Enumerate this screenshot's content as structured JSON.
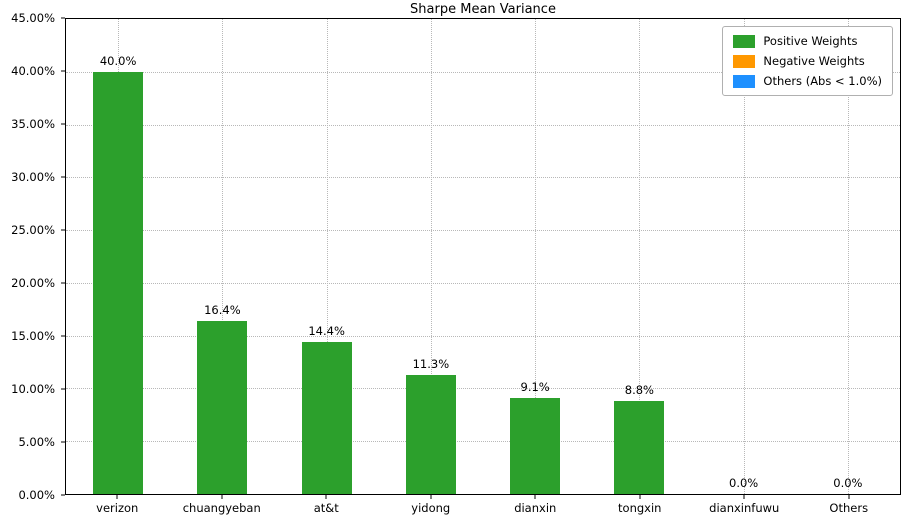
{
  "chart_data": {
    "type": "bar",
    "title": "Sharpe Mean Variance",
    "categories": [
      "verizon",
      "chuangyeban",
      "at&t",
      "yidong",
      "dianxin",
      "tongxin",
      "dianxinfuwu",
      "Others"
    ],
    "values": [
      40.0,
      16.4,
      14.4,
      11.3,
      9.1,
      8.8,
      0.0,
      0.0
    ],
    "value_labels": [
      "40.0%",
      "16.4%",
      "14.4%",
      "11.3%",
      "9.1%",
      "8.8%",
      "0.0%",
      "0.0%"
    ],
    "xlabel": "",
    "ylabel": "",
    "ylim": [
      0,
      45
    ],
    "y_ticks": [
      "0.00%",
      "5.00%",
      "10.00%",
      "15.00%",
      "20.00%",
      "25.00%",
      "30.00%",
      "35.00%",
      "40.00%",
      "45.00%"
    ],
    "grid": true,
    "bar_color": "#2ca02c",
    "legend": {
      "position": "top-right",
      "items": [
        {
          "label": "Positive Weights",
          "color": "#2ca02c"
        },
        {
          "label": "Negative Weights",
          "color": "#ff9800"
        },
        {
          "label": "Others (Abs < 1.0%)",
          "color": "#1e90ff"
        }
      ]
    }
  }
}
